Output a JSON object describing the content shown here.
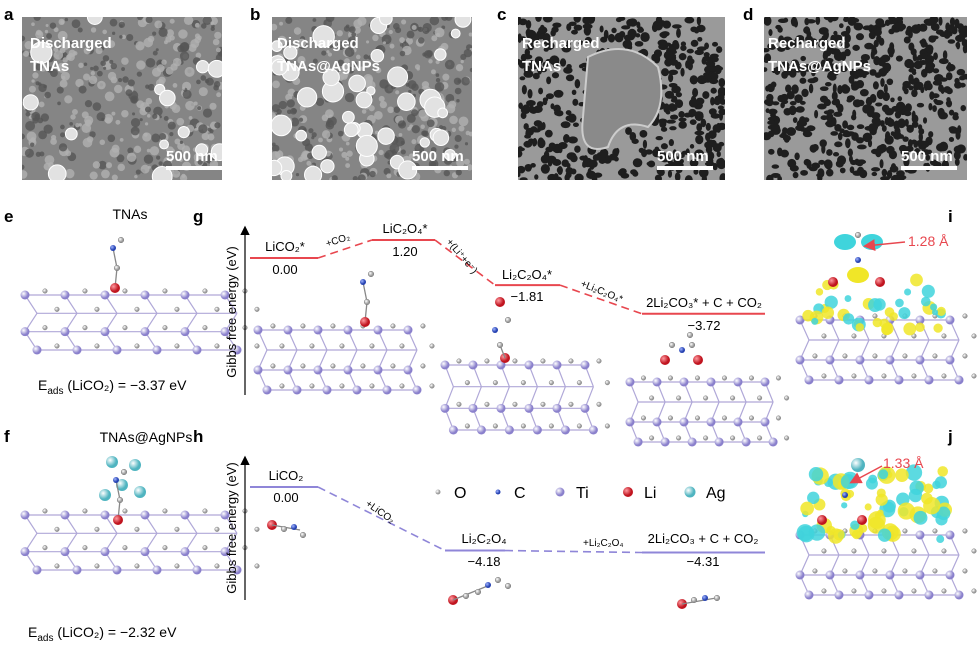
{
  "panels": {
    "a": {
      "letter": "a",
      "line1": "Discharged",
      "line2": "TNAs",
      "scale": "500 nm"
    },
    "b": {
      "letter": "b",
      "line1": "Discharged",
      "line2": "TNAs@AgNPs",
      "scale": "500 nm"
    },
    "c": {
      "letter": "c",
      "line1": "Recharged",
      "line2": "TNAs",
      "scale": "500 nm"
    },
    "d": {
      "letter": "d",
      "line1": "Recharged",
      "line2": "TNAs@AgNPs",
      "scale": "500 nm"
    },
    "e": {
      "letter": "e",
      "title": "TNAs",
      "eads": "E_ads (LiCO₂) = −3.37 eV",
      "eads_main": "E",
      "eads_sub": "ads",
      "eads_rest": " (LiCO₂) = −3.37 eV"
    },
    "f": {
      "letter": "f",
      "title": "TNAs@AgNPs",
      "eads_main": "E",
      "eads_sub": "ads",
      "eads_rest": " (LiCO₂) = −2.32 eV"
    },
    "g": {
      "letter": "g",
      "ylabel": "Gibbs free energy (eV)",
      "levels": [
        {
          "name": "LiCO₂*",
          "value": "0.00"
        },
        {
          "name": "LiC₂O₄*",
          "value": "1.20"
        },
        {
          "name": "Li₂C₂O₄*",
          "value": "−1.81"
        },
        {
          "name": "2Li₂CO₃* + C + CO₂",
          "value": "−3.72"
        }
      ],
      "steps": [
        "+CO₂",
        "+(Li⁺+e⁻)",
        "+Li₂C₂O₄*"
      ],
      "color": "#e8474f"
    },
    "h": {
      "letter": "h",
      "ylabel": "Gibbs free energy (eV)",
      "levels": [
        {
          "name": "LiCO₂",
          "value": "0.00"
        },
        {
          "name": "Li₂C₂O₄",
          "value": "−4.18"
        },
        {
          "name": "2Li₂CO₃ + C + CO₂",
          "value": "−4.31"
        }
      ],
      "steps": [
        "+LiCO₂",
        "+Li₂C₂O₄"
      ],
      "color": "#8f86d8"
    },
    "i": {
      "letter": "i",
      "distance": "1.28 Å"
    },
    "j": {
      "letter": "j",
      "distance": "1.33 Å"
    }
  },
  "legend": [
    {
      "label": "O",
      "color": "#b8b8b8"
    },
    {
      "label": "C",
      "color": "#3a5bc8"
    },
    {
      "label": "Ti",
      "color": "#b4aee0"
    },
    {
      "label": "Li",
      "color": "#d42a35"
    },
    {
      "label": "Ag",
      "color": "#7fd0d8"
    }
  ],
  "colors": {
    "label_red": "#e8474f",
    "charge_yellow": "#f0e628",
    "charge_cyan": "#3fd4dc"
  }
}
